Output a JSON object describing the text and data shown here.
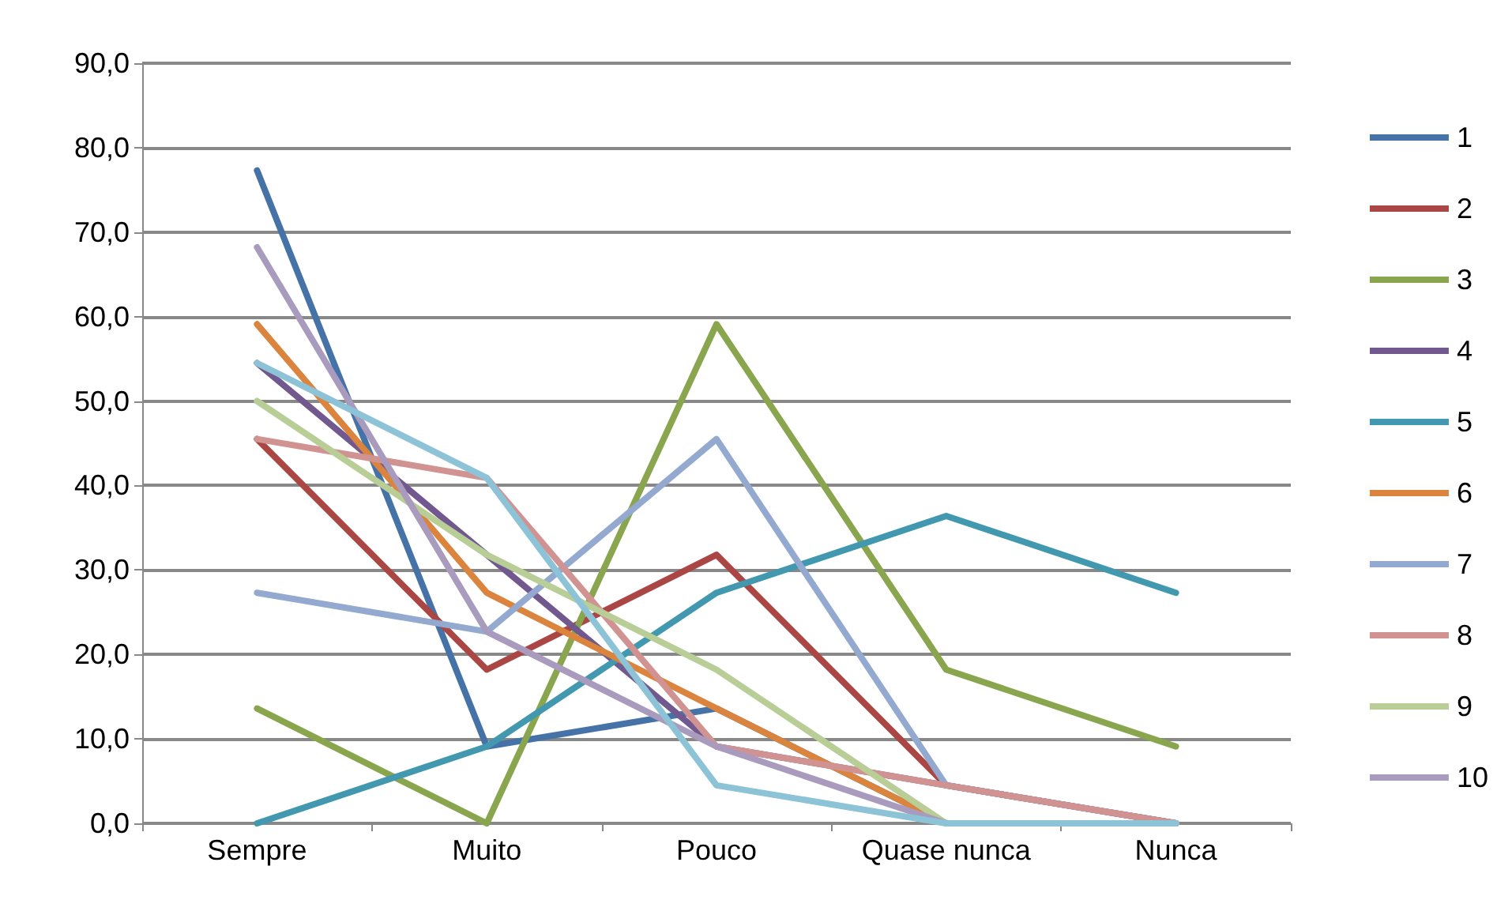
{
  "chart_data": {
    "type": "line",
    "categories": [
      "Sempre",
      "Muito",
      "Pouco",
      "Quase nunca",
      "Nunca"
    ],
    "series": [
      {
        "name": "1",
        "color": "#4572a7",
        "values": [
          77.3,
          9.1,
          13.6,
          0,
          0
        ]
      },
      {
        "name": "2",
        "color": "#aa4643",
        "values": [
          45.5,
          18.2,
          31.8,
          4.5,
          0
        ]
      },
      {
        "name": "3",
        "color": "#89a54e",
        "values": [
          13.6,
          0,
          59.1,
          18.2,
          9.1
        ]
      },
      {
        "name": "4",
        "color": "#71588f",
        "values": [
          54.5,
          31.8,
          9.1,
          4.5,
          0
        ]
      },
      {
        "name": "5",
        "color": "#4198af",
        "values": [
          0,
          9.1,
          27.3,
          36.4,
          27.3
        ]
      },
      {
        "name": "6",
        "color": "#db843d",
        "values": [
          59.1,
          27.3,
          13.6,
          0,
          0
        ]
      },
      {
        "name": "7",
        "color": "#93a9cf",
        "values": [
          27.3,
          22.7,
          45.5,
          4.5,
          0
        ]
      },
      {
        "name": "8",
        "color": "#d19392",
        "values": [
          45.5,
          40.9,
          9.1,
          4.5,
          0
        ]
      },
      {
        "name": "9",
        "color": "#b9cd96",
        "values": [
          50.0,
          31.8,
          18.2,
          0,
          0
        ]
      },
      {
        "name": "10",
        "color": "#a99bbd",
        "values": [
          68.2,
          22.7,
          9.1,
          0,
          0
        ]
      },
      {
        "color": "#8cc3d6",
        "values": [
          54.5,
          40.9,
          4.5,
          0,
          0
        ]
      }
    ],
    "ylim": [
      0,
      90
    ],
    "yticks": [
      {
        "value": 0,
        "label": "0,0"
      },
      {
        "value": 10,
        "label": "10,0"
      },
      {
        "value": 20,
        "label": "20,0"
      },
      {
        "value": 30,
        "label": "30,0"
      },
      {
        "value": 40,
        "label": "40,0"
      },
      {
        "value": 50,
        "label": "50,0"
      },
      {
        "value": 60,
        "label": "60,0"
      },
      {
        "value": 70,
        "label": "70,0"
      },
      {
        "value": 80,
        "label": "80,0"
      },
      {
        "value": 90,
        "label": "90,0"
      }
    ],
    "grid": "y",
    "legend": "right",
    "marker": "none",
    "line_style": "solid"
  }
}
